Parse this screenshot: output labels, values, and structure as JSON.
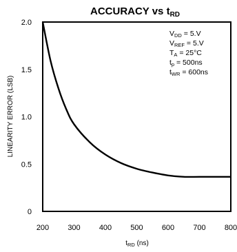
{
  "chart_data": {
    "type": "line",
    "title": {
      "main": "ACCURACY vs t",
      "sub": "RD"
    },
    "xlabel": {
      "base": "t",
      "sub": "RD",
      "suffix": " (ns)"
    },
    "ylabel": "LINEARITY ERROR (LSB)",
    "xlim": [
      200,
      800
    ],
    "ylim": [
      0,
      2.0
    ],
    "x_ticks": [
      "200",
      "300",
      "400",
      "500",
      "600",
      "700",
      "800"
    ],
    "y_ticks": [
      "2.0",
      "1.5",
      "1.0",
      "0.5",
      "0"
    ],
    "grid": false,
    "series": [
      {
        "x": [
          200,
          225,
          250,
          275,
          300,
          350,
          400,
          450,
          500,
          550,
          600,
          650,
          700,
          750,
          800
        ],
        "y": [
          2.0,
          1.59,
          1.3,
          1.08,
          0.92,
          0.73,
          0.6,
          0.51,
          0.45,
          0.41,
          0.38,
          0.365,
          0.365,
          0.365,
          0.365
        ]
      }
    ],
    "conditions": [
      {
        "base": "V",
        "sub": "DD",
        "rest": " = 5.V"
      },
      {
        "base": "V",
        "sub": "REF",
        "rest": " = 5.V"
      },
      {
        "base": "T",
        "sub": "A",
        "rest": " = 25°C"
      },
      {
        "base": "t",
        "sub": "p",
        "rest": " = 500ns"
      },
      {
        "base": "t",
        "sub": "WR",
        "rest": " = 600ns"
      }
    ]
  }
}
